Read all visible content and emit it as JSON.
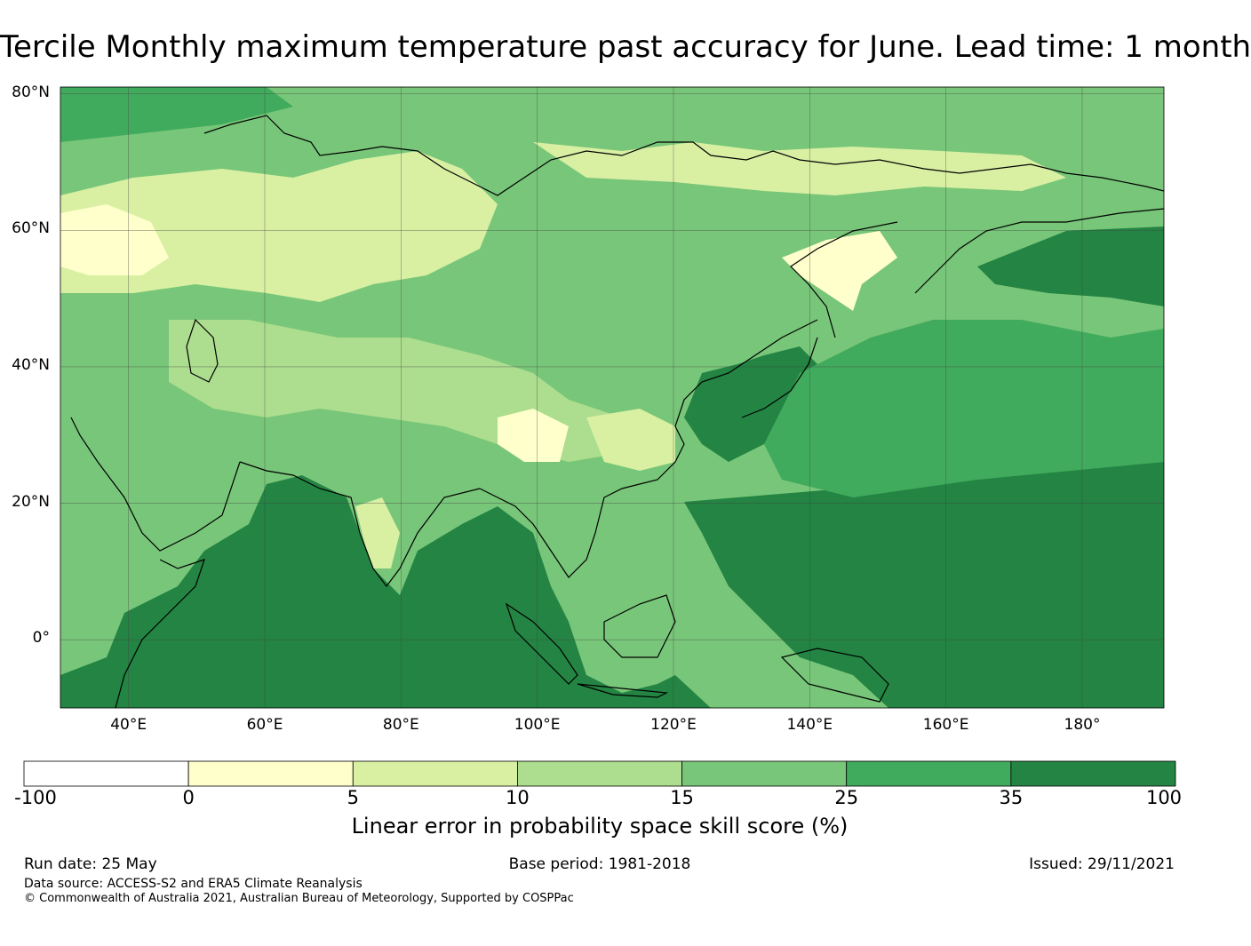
{
  "title": "Tercile Monthly maximum temperature past accuracy for June. Lead time: 1 month",
  "map": {
    "lat_labels": [
      "80°N",
      "60°N",
      "40°N",
      "20°N",
      "0°"
    ],
    "lon_labels": [
      "40°E",
      "60°E",
      "80°E",
      "100°E",
      "120°E",
      "140°E",
      "160°E",
      "180°"
    ],
    "lat_range": [
      -10,
      81
    ],
    "lon_range": [
      30,
      192
    ]
  },
  "colorbar": {
    "ticks": [
      "-100",
      "0",
      "5",
      "10",
      "15",
      "25",
      "35",
      "100"
    ],
    "colors": [
      "#ffffff",
      "#ffffcc",
      "#d9f0a3",
      "#addd8e",
      "#78c679",
      "#41ab5d",
      "#238443"
    ],
    "label": "Linear error in probability space skill score (%)"
  },
  "footer": {
    "run_date": "Run date: 25 May",
    "base_period": "Base period: 1981-2018",
    "issued": "Issued: 29/11/2021",
    "data_source": "Data source: ACCESS-S2 and ERA5 Climate Reanalysis",
    "copyright": "© Commonwealth of Australia 2021, Australian Bureau of Meteorology, Supported by COSPPac"
  }
}
